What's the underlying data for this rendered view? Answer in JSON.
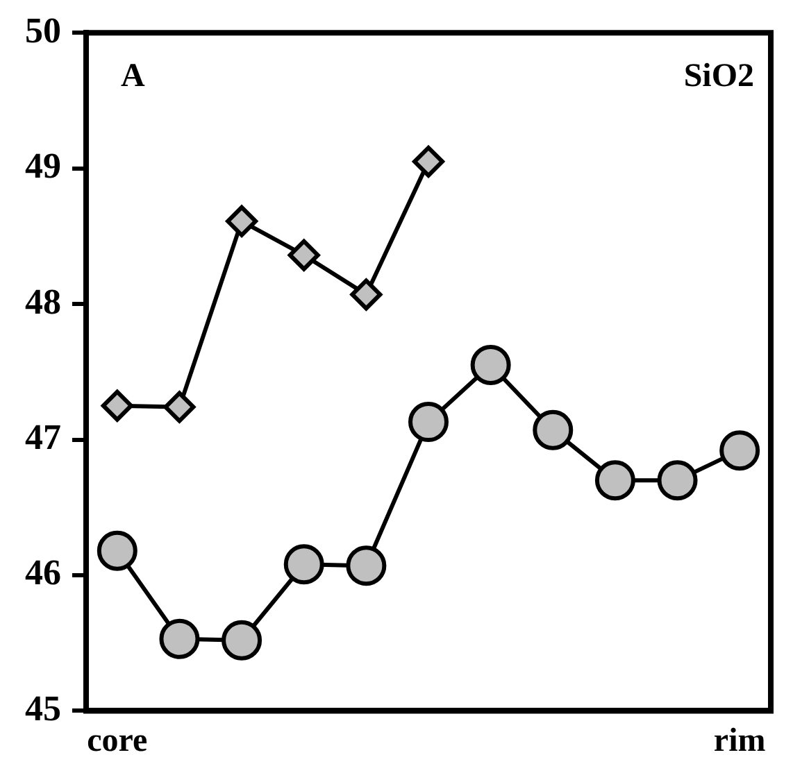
{
  "chart_data": {
    "type": "line",
    "categories": [
      "core",
      null,
      null,
      null,
      null,
      null,
      null,
      null,
      null,
      null,
      "rim"
    ],
    "series": [
      {
        "color": "#000000",
        "marker": "diamond",
        "values": [
          47.25,
          47.24,
          48.61,
          48.36,
          48.07,
          49.05,
          null,
          null,
          null,
          null,
          null
        ]
      },
      {
        "color": "#000000",
        "marker": "circle",
        "values": [
          46.18,
          45.53,
          45.52,
          46.08,
          46.07,
          47.13,
          47.55,
          47.07,
          46.7,
          46.7,
          46.92
        ]
      }
    ],
    "ylim": [
      45,
      50
    ],
    "yticks": [
      45,
      46,
      47,
      48,
      49,
      50
    ],
    "grid": false,
    "legend": false,
    "line_style": "solid",
    "annotations": [
      "A",
      "SiO2"
    ]
  }
}
